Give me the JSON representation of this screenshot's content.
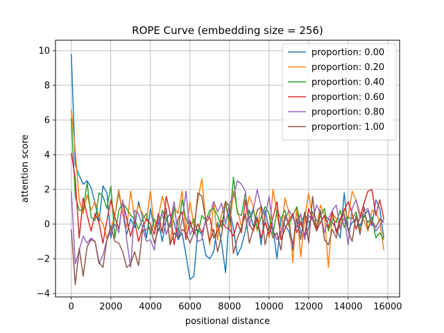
{
  "chart_data": {
    "type": "line",
    "title": "ROPE Curve (embedding size = 256)",
    "xlabel": "positional distance",
    "ylabel": "attention score",
    "xlim": [
      -800,
      16600
    ],
    "ylim": [
      -4.2,
      10.6
    ],
    "xticks": [
      0,
      2000,
      4000,
      6000,
      8000,
      10000,
      12000,
      14000,
      16000
    ],
    "yticks": [
      -4,
      -2,
      0,
      2,
      4,
      6,
      8,
      10
    ],
    "grid": true,
    "legend_position": "top-right",
    "x": [
      0,
      200,
      400,
      600,
      800,
      1000,
      1200,
      1400,
      1600,
      1800,
      2000,
      2200,
      2400,
      2600,
      2800,
      3000,
      3200,
      3400,
      3600,
      3800,
      4000,
      4200,
      4400,
      4600,
      4800,
      5000,
      5200,
      5400,
      5600,
      5800,
      6000,
      6200,
      6400,
      6600,
      6800,
      7000,
      7200,
      7400,
      7600,
      7800,
      8000,
      8200,
      8400,
      8600,
      8800,
      9000,
      9200,
      9400,
      9600,
      9800,
      10000,
      10200,
      10400,
      10600,
      10800,
      11000,
      11200,
      11400,
      11600,
      11800,
      12000,
      12200,
      12400,
      12600,
      12800,
      13000,
      13200,
      13400,
      13600,
      13800,
      14000,
      14200,
      14400,
      14600,
      14800,
      15000,
      15200,
      15400,
      15600,
      15800
    ],
    "series": [
      {
        "name": "proportion: 0.00",
        "color": "#1f77b4",
        "values": [
          9.8,
          3.4,
          2.8,
          2.3,
          2.5,
          2.1,
          1.2,
          0.1,
          2.2,
          1.8,
          -0.8,
          0.5,
          1.8,
          0.6,
          -0.6,
          0.3,
          -0.2,
          1.3,
          0.4,
          -0.8,
          0.9,
          -0.3,
          0.2,
          -1.0,
          0.3,
          0.6,
          0.1,
          -0.9,
          -0.5,
          -1.8,
          -3.2,
          -3.0,
          -0.3,
          -0.6,
          -1.8,
          -2.0,
          -1.6,
          0.1,
          -1.1,
          -2.8,
          0.9,
          -0.3,
          -1.8,
          -1.3,
          -0.4,
          0.8,
          -0.1,
          0.4,
          -1.2,
          0.8,
          -0.3,
          -0.2,
          -2.0,
          0.3,
          -0.1,
          -0.4,
          -1.5,
          0.9,
          -0.5,
          -0.8,
          -0.2,
          0.7,
          0.2,
          0.1,
          0.5,
          0.3,
          0.1,
          -0.3,
          -0.8,
          1.8,
          -0.4,
          0.1,
          0.3,
          -0.1,
          0.5,
          0.8,
          -0.1,
          1.4,
          0.9,
          -0.8
        ]
      },
      {
        "name": "proportion: 0.20",
        "color": "#ff7f0e",
        "values": [
          6.6,
          4.2,
          1.4,
          0.6,
          1.7,
          0.8,
          1.3,
          0.4,
          0.0,
          -0.8,
          -0.3,
          0.5,
          2.0,
          0.6,
          -0.2,
          1.9,
          0.3,
          1.1,
          0.6,
          0.2,
          1.9,
          -0.3,
          0.4,
          1.6,
          0.8,
          -1.2,
          1.0,
          0.6,
          1.9,
          -0.4,
          1.3,
          -0.1,
          1.4,
          2.6,
          0.2,
          -1.2,
          1.3,
          -0.9,
          0.6,
          1.3,
          -0.2,
          1.9,
          0.8,
          -0.1,
          0.4,
          1.6,
          1.0,
          -0.4,
          1.1,
          0.3,
          -0.8,
          2.0,
          0.6,
          -0.7,
          1.5,
          0.7,
          -2.2,
          1.0,
          -1.9,
          0.3,
          1.8,
          0.4,
          -0.2,
          1.1,
          0.5,
          -2.5,
          0.6,
          0.3,
          -0.2,
          0.9,
          0.3,
          1.9,
          1.4,
          0.6,
          0.2,
          -0.4,
          0.8,
          0.6,
          0.2,
          -1.5
        ]
      },
      {
        "name": "proportion: 0.40",
        "color": "#2ca02c",
        "values": [
          6.1,
          1.6,
          0.8,
          0.8,
          2.4,
          0.4,
          0.2,
          1.8,
          1.6,
          0.9,
          2.2,
          -0.8,
          0.8,
          1.2,
          0.9,
          0.5,
          0.3,
          -0.3,
          0.3,
          0.6,
          -0.6,
          0.3,
          -0.4,
          0.8,
          0.3,
          -0.2,
          1.0,
          -0.5,
          1.4,
          0.3,
          -0.2,
          0.3,
          -0.6,
          0.5,
          0.2,
          0.8,
          0.9,
          0.5,
          -0.2,
          1.3,
          0.1,
          2.7,
          0.6,
          0.5,
          1.8,
          0.3,
          0.9,
          -0.3,
          0.4,
          1.0,
          0.6,
          -0.6,
          0.8,
          0.3,
          0.8,
          -0.1,
          0.5,
          1.0,
          0.0,
          0.6,
          0.1,
          0.4,
          -0.3,
          0.5,
          0.9,
          -0.4,
          0.3,
          0.1,
          0.8,
          -0.2,
          0.4,
          0.3,
          0.7,
          -0.4,
          0.5,
          0.1,
          0.4,
          -0.8,
          -0.5,
          -0.9
        ]
      },
      {
        "name": "proportion: 0.60",
        "color": "#d62728",
        "values": [
          4.1,
          2.6,
          -0.8,
          1.5,
          0.5,
          -0.4,
          0.6,
          0.1,
          -1.1,
          0.2,
          1.4,
          0.4,
          -0.3,
          1.3,
          0.3,
          -0.7,
          0.2,
          -1.0,
          -0.2,
          0.3,
          0.0,
          -0.6,
          0.6,
          -0.5,
          1.6,
          0.6,
          -1.2,
          0.3,
          0.7,
          -0.9,
          0.2,
          -0.6,
          0.0,
          -0.5,
          0.1,
          0.4,
          -0.8,
          -0.4,
          0.2,
          -0.2,
          -0.3,
          -0.7,
          0.1,
          -0.5,
          1.4,
          0.0,
          -0.4,
          0.3,
          -0.8,
          0.1,
          -0.6,
          0.4,
          1.3,
          -0.9,
          -0.3,
          0.2,
          0.6,
          -0.5,
          0.1,
          -0.7,
          0.9,
          0.3,
          -0.4,
          0.1,
          0.5,
          -0.2,
          0.7,
          -0.5,
          0.3,
          0.8,
          1.3,
          0.6,
          -0.3,
          0.4,
          1.2,
          1.9,
          2.0,
          0.5,
          1.4,
          0.3
        ]
      },
      {
        "name": "proportion: 0.80",
        "color": "#9467bd",
        "values": [
          1.9,
          -2.3,
          -1.5,
          -0.7,
          -1.1,
          -0.8,
          -1.0,
          -2.3,
          -1.8,
          -0.9,
          -0.4,
          0.0,
          -0.5,
          1.4,
          -0.9,
          -2.5,
          0.8,
          0.6,
          -0.2,
          -1.0,
          -0.9,
          -1.5,
          0.2,
          0.6,
          -0.6,
          0.1,
          1.3,
          -0.8,
          0.2,
          1.9,
          -0.6,
          -0.2,
          -1.0,
          -0.9,
          0.3,
          0.5,
          1.3,
          0.7,
          1.2,
          0.0,
          1.2,
          1.6,
          2.5,
          2.3,
          1.9,
          -0.1,
          0.8,
          2.0,
          1.0,
          0.4,
          1.6,
          -0.3,
          -0.9,
          -0.5,
          0.2,
          0.8,
          0.4,
          -0.2,
          0.6,
          -0.9,
          0.5,
          0.2,
          1.1,
          0.6,
          -0.5,
          0.3,
          0.8,
          1.1,
          -0.3,
          0.4,
          -1.2,
          0.9,
          1.4,
          0.3,
          0.8,
          0.9,
          0.1,
          -0.4,
          -0.1,
          0.3
        ]
      },
      {
        "name": "proportion: 1.00",
        "color": "#8c564b",
        "values": [
          -0.3,
          -3.5,
          -1.4,
          -3.0,
          -1.3,
          -0.9,
          -1.0,
          -2.2,
          -2.5,
          -0.9,
          -0.1,
          -1.0,
          -1.1,
          -1.6,
          -2.5,
          -2.3,
          -1.6,
          -2.4,
          -0.4,
          -0.3,
          -0.2,
          -1.1,
          -0.3,
          -0.4,
          0.9,
          -1.2,
          -0.5,
          -0.8,
          -0.3,
          -0.5,
          -1.1,
          -0.5,
          1.8,
          1.6,
          0.2,
          -1.0,
          -0.3,
          -1.6,
          -0.6,
          1.3,
          1.0,
          -1.7,
          -0.8,
          -0.2,
          0.6,
          -1.1,
          -0.3,
          0.8,
          1.0,
          -1.2,
          -0.1,
          -0.8,
          -0.5,
          -1.5,
          0.5,
          0.0,
          -1.2,
          0.3,
          -0.9,
          0.7,
          -1.1,
          1.6,
          -0.4,
          0.8,
          -0.9,
          -1.2,
          -0.3,
          -0.8,
          0.2,
          0.6,
          -0.4,
          -1.0,
          0.5,
          -0.6,
          1.0,
          -0.3,
          0.2,
          -0.2,
          0.3,
          0.1
        ]
      }
    ]
  }
}
